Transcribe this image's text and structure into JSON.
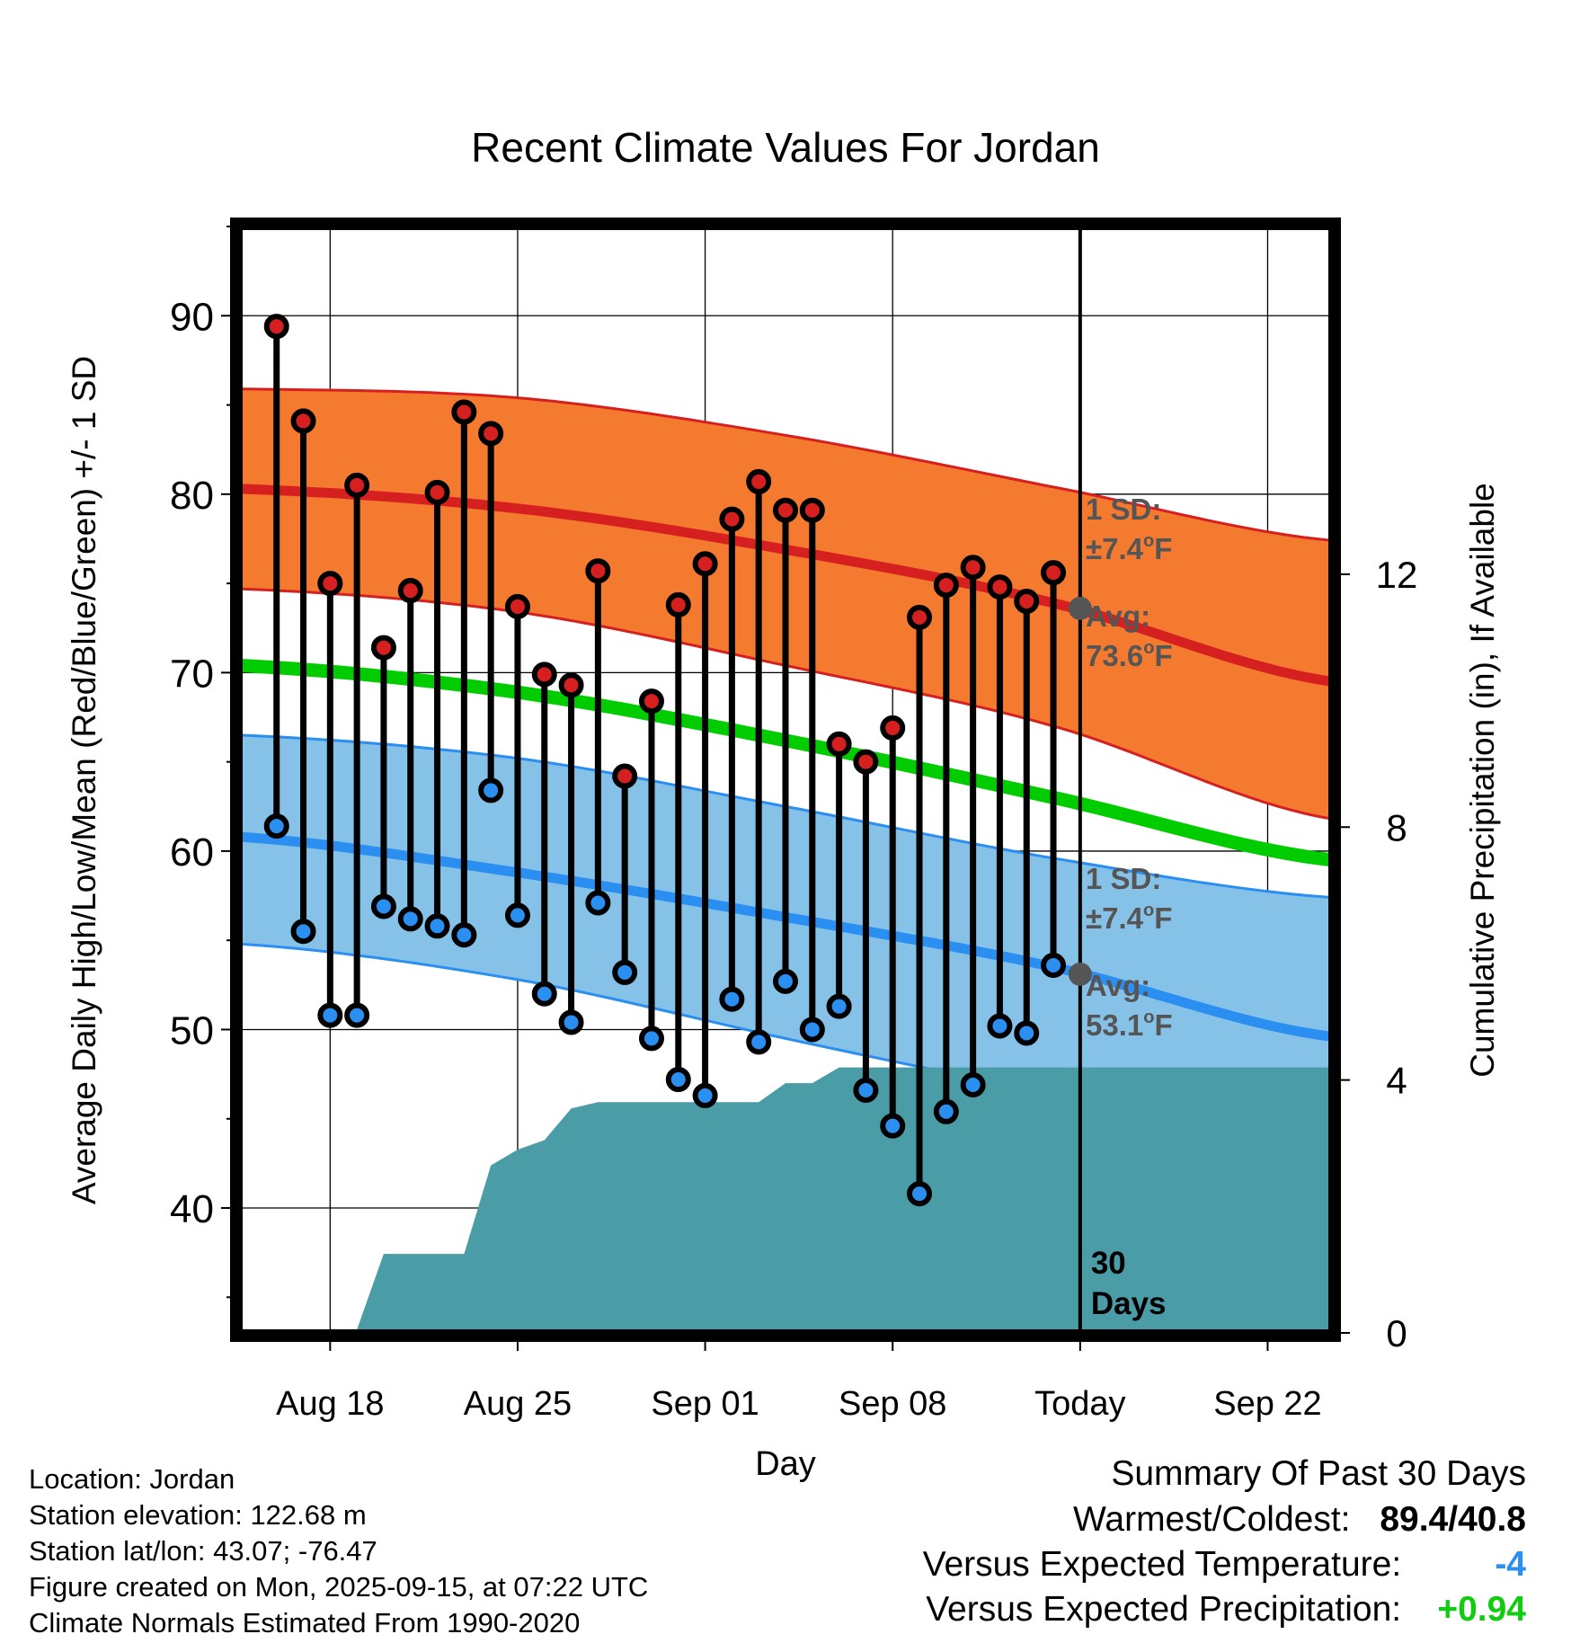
{
  "colors": {
    "high": "#d62020",
    "low": "#2a8ff0",
    "mean": "#00cc00",
    "high_band": "#f47a30",
    "low_band": "#86c1e8",
    "precip": "#4a9ca6",
    "today_marker": "#555555"
  },
  "chart_data": {
    "type": "line",
    "title": "Recent Climate Values For Jordan",
    "xlabel": "Day",
    "ylabel": "Average Daily High/Low/Mean (Red/Blue/Green) +/- 1 SD",
    "ylabel_right": "Cumulative Precipitation (in), If Available",
    "ylim": [
      33,
      95
    ],
    "yticks": [
      40,
      50,
      60,
      70,
      80,
      90
    ],
    "y2lim": [
      0,
      17.5
    ],
    "y2ticks": [
      0,
      4,
      8,
      12
    ],
    "xlim": [
      -1.4,
      39.4
    ],
    "xticks": [
      {
        "label": "Aug 18",
        "day": 2
      },
      {
        "label": "Aug 25",
        "day": 9
      },
      {
        "label": "Sep 01",
        "day": 16
      },
      {
        "label": "Sep 08",
        "day": 23
      },
      {
        "label": "Today",
        "day": 30
      },
      {
        "label": "Sep 22",
        "day": 37
      }
    ],
    "today_day": 30,
    "period_label": [
      "30",
      "Days"
    ],
    "daily": {
      "day": [
        0,
        1,
        2,
        3,
        4,
        5,
        6,
        7,
        8,
        9,
        10,
        11,
        12,
        13,
        14,
        15,
        16,
        17,
        18,
        19,
        20,
        21,
        22,
        23,
        24,
        25,
        26,
        27,
        28,
        29
      ],
      "high": [
        89.4,
        84.1,
        75.0,
        80.5,
        71.4,
        74.6,
        80.1,
        84.6,
        83.4,
        73.7,
        69.9,
        69.3,
        75.7,
        64.2,
        68.4,
        73.8,
        76.1,
        78.6,
        80.7,
        79.1,
        79.1,
        66.0,
        65.0,
        66.9,
        73.1,
        74.9,
        75.9,
        74.8,
        74.0,
        75.6
      ],
      "low": [
        61.4,
        55.5,
        50.8,
        50.8,
        56.9,
        56.2,
        55.8,
        55.3,
        63.4,
        56.4,
        52.0,
        50.4,
        57.1,
        53.2,
        49.5,
        47.2,
        46.3,
        51.7,
        49.3,
        52.7,
        50.0,
        51.3,
        46.6,
        44.6,
        40.8,
        45.4,
        46.9,
        50.2,
        49.8,
        53.6
      ]
    },
    "normals": {
      "day": [
        -1.4,
        9,
        19,
        29,
        39.4
      ],
      "high_avg": [
        80.3,
        79.2,
        76.9,
        73.9,
        69.5
      ],
      "high_upper": [
        85.9,
        85.4,
        83.3,
        80.4,
        77.4
      ],
      "high_lower": [
        74.7,
        73.4,
        70.4,
        67.0,
        61.8
      ],
      "mean": [
        70.4,
        68.9,
        66.2,
        63.0,
        59.5
      ],
      "low_avg": [
        60.8,
        58.8,
        56.3,
        53.5,
        49.6
      ],
      "low_upper": [
        66.5,
        65.2,
        62.5,
        59.6,
        57.4
      ],
      "low_lower": [
        54.8,
        52.8,
        49.5,
        46.3,
        42.8
      ]
    },
    "precip": {
      "day": [
        0,
        1,
        2,
        3,
        4,
        5,
        6,
        7,
        8,
        9,
        10,
        11,
        12,
        13,
        14,
        15,
        16,
        17,
        18,
        19,
        20,
        21,
        22,
        23,
        24,
        25,
        26,
        27,
        28,
        29,
        30,
        39.4
      ],
      "cumulative_in": [
        0,
        0,
        0,
        0.05,
        1.25,
        1.25,
        1.25,
        1.25,
        2.65,
        2.9,
        3.05,
        3.55,
        3.65,
        3.65,
        3.65,
        3.65,
        3.65,
        3.65,
        3.65,
        3.95,
        3.95,
        4.2,
        4.2,
        4.2,
        4.2,
        4.2,
        4.2,
        4.2,
        4.2,
        4.2,
        4.2,
        4.2
      ]
    },
    "annotations": {
      "high_sd": {
        "label": "1 SD:",
        "value": "±7.4°F",
        "value_main": "±7.4",
        "value_sup": "o",
        "value_unit": "F"
      },
      "high_avg": {
        "label": "Avg:",
        "value": "73.6°F",
        "value_main": "73.6",
        "value_sup": "o",
        "value_unit": "F",
        "y": 73.6
      },
      "low_sd": {
        "label": "1 SD:",
        "value": "±7.4°F",
        "value_main": "±7.4",
        "value_sup": "o",
        "value_unit": "F"
      },
      "low_avg": {
        "label": "Avg:",
        "value": "53.1°F",
        "value_main": "53.1",
        "value_sup": "o",
        "value_unit": "F",
        "y": 53.1
      }
    }
  },
  "station": {
    "location": "Location: Jordan",
    "elevation": "Station elevation: 122.68 m",
    "latlon": "Station lat/lon: 43.07; -76.47",
    "created": "Figure created on Mon, 2025-09-15, at 07:22 UTC",
    "normals": "Climate Normals Estimated From 1990-2020"
  },
  "summary": {
    "title": "Summary Of Past 30 Days",
    "warm_cold_label": "Warmest/Coldest:",
    "warm_cold_value": "89.4/40.8",
    "temp_label": "Versus Expected Temperature:",
    "temp_value": "-4",
    "temp_color": "#2a8ff0",
    "precip_label": "Versus Expected Precipitation:",
    "precip_value": "+0.94",
    "precip_color": "#11cc11"
  }
}
